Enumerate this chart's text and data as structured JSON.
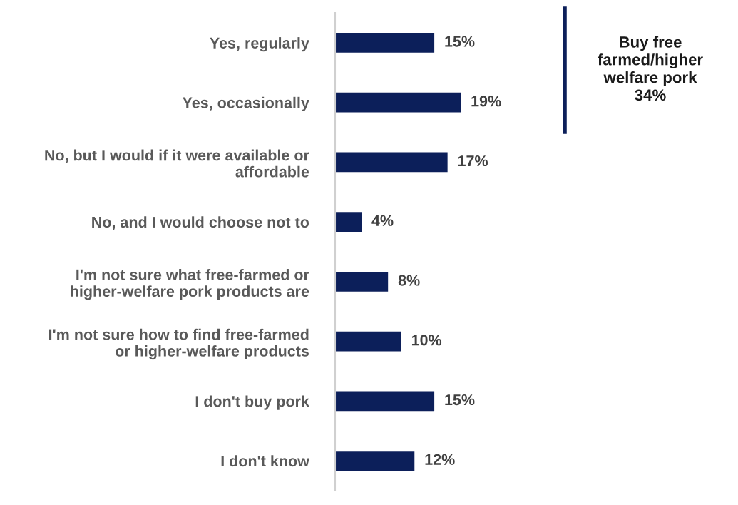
{
  "chart_data": {
    "type": "bar",
    "orientation": "horizontal",
    "categories": [
      "Yes, regularly",
      "Yes, occasionally",
      "No, but I would if it were available or\naffordable",
      "No, and I would choose not to",
      "I'm not sure what free-farmed or\nhigher-welfare pork products are",
      "I'm not sure how to find free-farmed\nor higher-welfare products",
      "I don't buy pork",
      "I don't know"
    ],
    "values": [
      15,
      19,
      17,
      4,
      8,
      10,
      15,
      12
    ],
    "value_labels": [
      "15%",
      "19%",
      "17%",
      "4%",
      "8%",
      "10%",
      "15%",
      "12%"
    ],
    "color": "#0c1f5a",
    "tick_labels": "y",
    "grid": false,
    "annotations": [
      "Buy free\nfarmed/higher\nwelfare pork\n34%"
    ]
  }
}
